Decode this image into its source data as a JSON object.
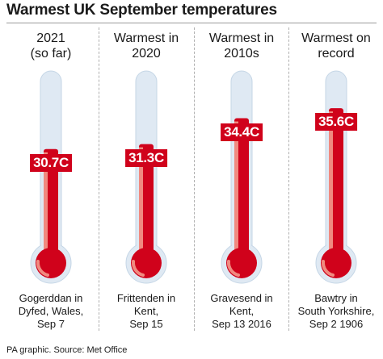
{
  "title": "Warmest UK September temperatures",
  "source": "PA graphic. Source: Met Office",
  "colors": {
    "mercury": "#d0021b",
    "mercury_shade": "#f08a80",
    "glass": "#dfe9f3",
    "glass_edge": "#c5d6e6"
  },
  "chart_data": {
    "type": "bar",
    "title": "Warmest UK September temperatures",
    "categories": [
      "2021 (so far)",
      "Warmest in 2020",
      "Warmest in 2010s",
      "Warmest on record"
    ],
    "values": [
      30.7,
      31.3,
      34.4,
      35.6
    ],
    "value_labels": [
      "30.7C",
      "31.3C",
      "34.4C",
      "35.6C"
    ],
    "locations": [
      "Gogerddan in Dyfed, Wales, Sep 7",
      "Frittenden in Kent, Sep 15",
      "Gravesend in Kent, Sep 13 2016",
      "Bawtry in South Yorkshire, Sep 2 1906"
    ],
    "unit": "C"
  },
  "columns": [
    {
      "header": "2021\n(so far)",
      "label": "30.7C",
      "value": 30.7,
      "footer": "Gogerddan in\nDyfed, Wales,\nSep 7"
    },
    {
      "header": "Warmest in\n2020",
      "label": "31.3C",
      "value": 31.3,
      "footer": "Frittenden in\nKent,\nSep 15"
    },
    {
      "header": "Warmest in\n2010s",
      "label": "34.4C",
      "value": 34.4,
      "footer": "Gravesend in\nKent,\nSep 13 2016"
    },
    {
      "header": "Warmest on\nrecord",
      "label": "35.6C",
      "value": 35.6,
      "footer": "Bawtry in\nSouth Yorkshire,\nSep 2 1906"
    }
  ]
}
